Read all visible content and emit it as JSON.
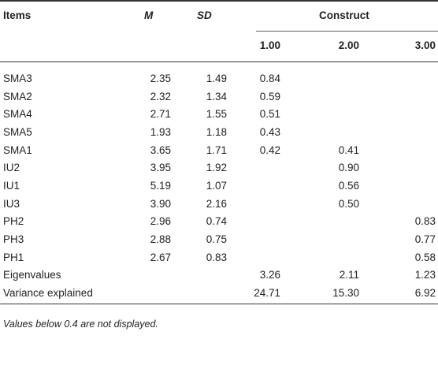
{
  "table": {
    "header": {
      "items": "Items",
      "m": "M",
      "sd": "SD",
      "construct": "Construct",
      "factors": [
        "1.00",
        "2.00",
        "3.00"
      ]
    },
    "rows": [
      [
        "SMA3",
        "2.35",
        "1.49",
        "0.84",
        null,
        null
      ],
      [
        "SMA2",
        "2.32",
        "1.34",
        "0.59",
        null,
        null
      ],
      [
        "SMA4",
        "2.71",
        "1.55",
        "0.51",
        null,
        null
      ],
      [
        "SMA5",
        "1.93",
        "1.18",
        "0.43",
        null,
        null
      ],
      [
        "SMA1",
        "3.65",
        "1.71",
        "0.42",
        "0.41",
        null
      ],
      [
        "IU2",
        "3.95",
        "1.92",
        null,
        "0.90",
        null
      ],
      [
        "IU1",
        "5.19",
        "1.07",
        null,
        "0.56",
        null
      ],
      [
        "IU3",
        "3.90",
        "2.16",
        null,
        "0.50",
        null
      ],
      [
        "PH2",
        "2.96",
        "0.74",
        null,
        null,
        "0.83"
      ],
      [
        "PH3",
        "2.88",
        "0.75",
        null,
        null,
        "0.77"
      ],
      [
        "PH1",
        "2.67",
        "0.83",
        null,
        null,
        "0.58"
      ],
      [
        "Eigenvalues",
        null,
        null,
        "3.26",
        "2.11",
        "1.23"
      ],
      [
        "Variance explained",
        null,
        null,
        "24.71",
        "15.30",
        "6.92"
      ]
    ],
    "footnote": "Values below 0.4 are not displayed."
  }
}
